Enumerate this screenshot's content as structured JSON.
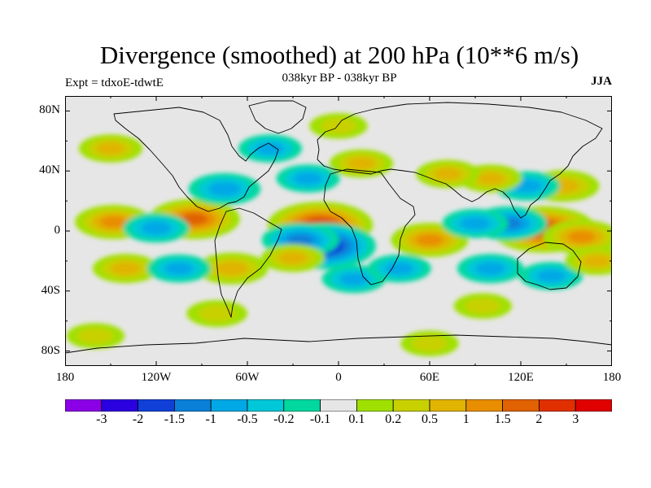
{
  "title": "Divergence (smoothed) at 200 hPa (10**6 m/s)",
  "experiment": "Expt = tdxoE-tdwtE",
  "period": "038kyr BP - 038kyr BP",
  "season": "JJA",
  "map": {
    "lat_labels": [
      {
        "lat": 80,
        "text": "80N"
      },
      {
        "lat": 40,
        "text": "40N"
      },
      {
        "lat": 0,
        "text": "0"
      },
      {
        "lat": -40,
        "text": "40S"
      },
      {
        "lat": -80,
        "text": "80S"
      }
    ],
    "lon_labels": [
      {
        "lon": -180,
        "text": "180"
      },
      {
        "lon": -120,
        "text": "120W"
      },
      {
        "lon": -60,
        "text": "60W"
      },
      {
        "lon": 0,
        "text": "0"
      },
      {
        "lon": 60,
        "text": "60E"
      },
      {
        "lon": 120,
        "text": "120E"
      },
      {
        "lon": 180,
        "text": "180"
      }
    ],
    "lat_range": [
      -90,
      90
    ],
    "lon_range": [
      -180,
      180
    ],
    "background_color": "#e6e6e6",
    "coast_color": "#000000"
  },
  "colorbar": {
    "labels": [
      "-3",
      "-2",
      "-1.5",
      "-1",
      "-0.5",
      "-0.2",
      "-0.1",
      "0.1",
      "0.2",
      "0.5",
      "1",
      "1.5",
      "2",
      "3"
    ],
    "colors": [
      "#8b00e6",
      "#2a00e0",
      "#1040d8",
      "#0a80d8",
      "#00a8e6",
      "#00c8d8",
      "#00d8a0",
      "#e6e6e6",
      "#a0e000",
      "#c8d000",
      "#e0b400",
      "#e88e00",
      "#e06200",
      "#e03000",
      "#e00000"
    ]
  },
  "chart_data": {
    "type": "heatmap",
    "title": "Divergence (smoothed) at 200 hPa (10**6 m/s)",
    "variable": "divergence at 200 hPa",
    "units": "10**6 m/s",
    "levels": [
      -3,
      -2,
      -1.5,
      -1,
      -0.5,
      -0.2,
      -0.1,
      0.1,
      0.2,
      0.5,
      1,
      1.5,
      2,
      3
    ],
    "xlim": [
      -180,
      180
    ],
    "ylim": [
      -90,
      90
    ],
    "anomalies": [
      {
        "lon": -12,
        "lat": 4,
        "value": 2.0
      },
      {
        "lon": -10,
        "lat": -10,
        "value": -2.0
      },
      {
        "lon": -25,
        "lat": -6,
        "value": -1.0
      },
      {
        "lon": 135,
        "lat": 1,
        "value": 2.0
      },
      {
        "lon": 160,
        "lat": -4,
        "value": 1.0
      },
      {
        "lon": 112,
        "lat": 5,
        "value": -1.0
      },
      {
        "lon": 148,
        "lat": 30,
        "value": 0.8
      },
      {
        "lon": 124,
        "lat": 30,
        "value": -0.6
      },
      {
        "lon": 60,
        "lat": -6,
        "value": 1.0
      },
      {
        "lon": 90,
        "lat": 5,
        "value": -0.6
      },
      {
        "lon": 100,
        "lat": 35,
        "value": 0.5
      },
      {
        "lon": 72,
        "lat": 38,
        "value": 0.5
      },
      {
        "lon": -95,
        "lat": 8,
        "value": 1.5
      },
      {
        "lon": -148,
        "lat": 6,
        "value": 1.0
      },
      {
        "lon": -120,
        "lat": 2,
        "value": -0.6
      },
      {
        "lon": -75,
        "lat": 28,
        "value": -0.8
      },
      {
        "lon": -70,
        "lat": -25,
        "value": 0.8
      },
      {
        "lon": -30,
        "lat": -18,
        "value": 0.5
      },
      {
        "lon": -140,
        "lat": -25,
        "value": 0.6
      },
      {
        "lon": -105,
        "lat": -25,
        "value": -0.5
      },
      {
        "lon": 10,
        "lat": -32,
        "value": -0.5
      },
      {
        "lon": 40,
        "lat": -25,
        "value": -0.5
      },
      {
        "lon": 15,
        "lat": 45,
        "value": 0.5
      },
      {
        "lon": -20,
        "lat": 35,
        "value": -0.5
      },
      {
        "lon": -45,
        "lat": 55,
        "value": -0.5
      },
      {
        "lon": -150,
        "lat": 55,
        "value": 0.5
      },
      {
        "lon": 0,
        "lat": 70,
        "value": 0.3
      },
      {
        "lon": 100,
        "lat": -25,
        "value": -0.6
      },
      {
        "lon": 140,
        "lat": -30,
        "value": -0.5
      },
      {
        "lon": 170,
        "lat": -20,
        "value": 0.5
      },
      {
        "lon": -160,
        "lat": -70,
        "value": 0.3
      },
      {
        "lon": 60,
        "lat": -75,
        "value": 0.3
      },
      {
        "lon": -80,
        "lat": -55,
        "value": 0.4
      },
      {
        "lon": 95,
        "lat": -50,
        "value": 0.3
      }
    ]
  }
}
